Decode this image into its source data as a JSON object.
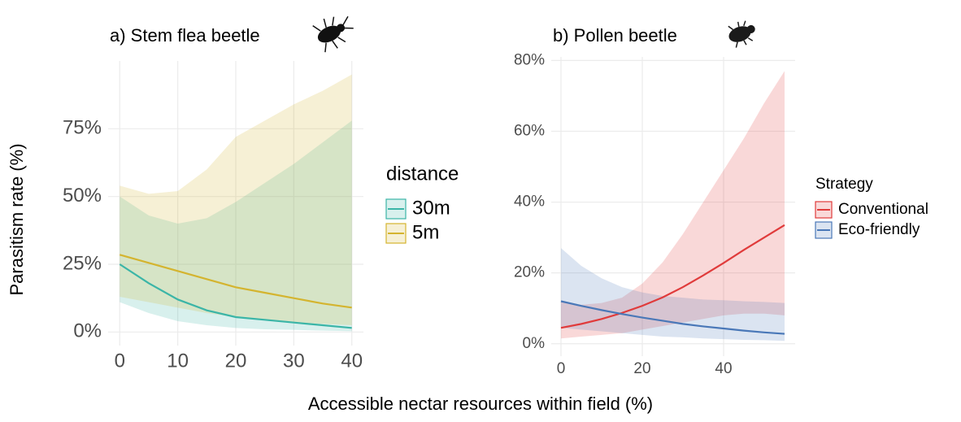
{
  "chart_data": [
    {
      "type": "line",
      "title": "a) Stem flea beetle",
      "ylabel": "Parasitism rate (%)",
      "x": [
        0,
        5,
        10,
        15,
        20,
        25,
        30,
        35,
        40
      ],
      "xlim": [
        -2,
        42
      ],
      "xticks": [
        0,
        10,
        20,
        30,
        40
      ],
      "ylim": [
        -5,
        100
      ],
      "yticks": [
        {
          "value": 0,
          "label": "0%"
        },
        {
          "value": 25,
          "label": "25%"
        },
        {
          "value": 50,
          "label": "50%"
        },
        {
          "value": 75,
          "label": "75%"
        }
      ],
      "grid": true,
      "legend_title": "distance",
      "series": [
        {
          "name": "30m",
          "color": "#3bb5a7",
          "values": [
            25,
            18,
            12,
            8,
            5.5,
            4.5,
            3.5,
            2.5,
            1.5
          ],
          "lower": [
            11,
            7,
            4,
            2.5,
            1.5,
            1,
            0.8,
            0.5,
            0.3
          ],
          "upper": [
            50,
            43,
            40,
            42,
            48,
            55,
            62,
            70,
            78
          ]
        },
        {
          "name": "5m",
          "color": "#d4b42f",
          "values": [
            28.5,
            25.5,
            22.5,
            19.5,
            16.5,
            14.5,
            12.5,
            10.5,
            9
          ],
          "lower": [
            13,
            11,
            9,
            7,
            5.5,
            4.5,
            3.5,
            3,
            2.5
          ],
          "upper": [
            54,
            51,
            52,
            60,
            72,
            78,
            84,
            89,
            95
          ]
        }
      ]
    },
    {
      "type": "line",
      "title": "b) Pollen beetle",
      "x": [
        0,
        5,
        10,
        15,
        20,
        25,
        30,
        35,
        40,
        45,
        50,
        55
      ],
      "xlim": [
        -2.4,
        57.6
      ],
      "xticks": [
        0,
        20,
        40
      ],
      "ylim": [
        -3.5,
        81
      ],
      "yticks": [
        {
          "value": 0,
          "label": "0%"
        },
        {
          "value": 20,
          "label": "20%"
        },
        {
          "value": 40,
          "label": "40%"
        },
        {
          "value": 60,
          "label": "60%"
        },
        {
          "value": 80,
          "label": "80%"
        }
      ],
      "grid": true,
      "legend_title": "Strategy",
      "series": [
        {
          "name": "Conventional",
          "color": "#e03b3b",
          "values": [
            4.5,
            5.6,
            7,
            8.7,
            10.7,
            13.1,
            16,
            19.3,
            22.8,
            26.5,
            30,
            33.5
          ],
          "lower": [
            1.5,
            2,
            2.5,
            3,
            4,
            5,
            6,
            7,
            8,
            8.5,
            8.5,
            8
          ],
          "upper": [
            12,
            11,
            11.5,
            13,
            17,
            23,
            31,
            40,
            49,
            58,
            68,
            77
          ]
        },
        {
          "name": "Eco-friendly",
          "color": "#4a78b8",
          "values": [
            12,
            10.7,
            9.5,
            8.4,
            7.4,
            6.5,
            5.6,
            4.9,
            4.3,
            3.7,
            3.2,
            2.8
          ],
          "lower": [
            4.5,
            4,
            3.5,
            3,
            2.5,
            2,
            1.8,
            1.5,
            1.3,
            1.1,
            1,
            0.8
          ],
          "upper": [
            27,
            22,
            18.5,
            16,
            14.5,
            13.5,
            13,
            12.5,
            12.3,
            12,
            11.8,
            11.5
          ]
        }
      ]
    }
  ],
  "xlabel": "Accessible nectar resources within field (%)"
}
